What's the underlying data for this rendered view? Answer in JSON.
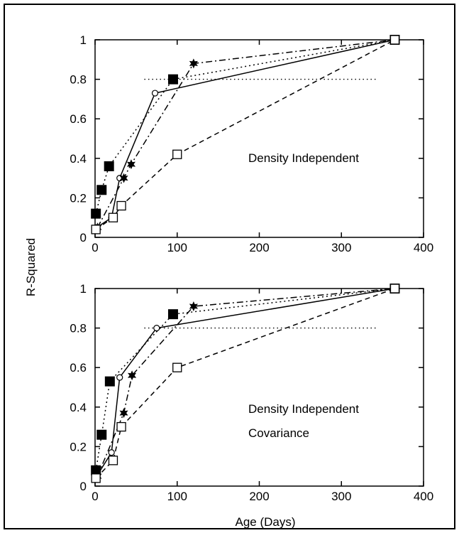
{
  "figure": {
    "ylabel": "R-Squared",
    "xlabel": "Age (Days)"
  },
  "chart_data": [
    {
      "type": "line",
      "annotation": [
        "Density Independent"
      ],
      "xlim": [
        0,
        400
      ],
      "ylim": [
        0,
        1
      ],
      "xticks": [
        "0",
        "100",
        "200",
        "300",
        "400"
      ],
      "yticks": [
        "0",
        "0.2",
        "0.4",
        "0.6",
        "0.8",
        "1"
      ],
      "reference_y": 0.8,
      "series": [
        {
          "style": "solid",
          "marker": "open-circle",
          "points": [
            [
              2,
              0.05
            ],
            [
              20,
              0.1
            ],
            [
              30,
              0.3
            ],
            [
              73,
              0.73
            ],
            [
              365,
              1.0
            ]
          ]
        },
        {
          "style": "dotted",
          "marker": "filled-square",
          "points": [
            [
              1,
              0.12
            ],
            [
              8,
              0.24
            ],
            [
              17,
              0.36
            ],
            [
              95,
              0.8
            ],
            [
              365,
              1.0
            ]
          ]
        },
        {
          "style": "dash-dot",
          "marker": "filled-star",
          "points": [
            [
              3,
              0.05
            ],
            [
              35,
              0.3
            ],
            [
              44,
              0.37
            ],
            [
              120,
              0.88
            ],
            [
              365,
              1.0
            ]
          ]
        },
        {
          "style": "dashed",
          "marker": "open-square",
          "points": [
            [
              1,
              0.04
            ],
            [
              22,
              0.1
            ],
            [
              32,
              0.16
            ],
            [
              100,
              0.42
            ],
            [
              365,
              1.0
            ]
          ]
        }
      ]
    },
    {
      "type": "line",
      "annotation": [
        "Density Independent",
        "Covariance"
      ],
      "xlim": [
        0,
        400
      ],
      "ylim": [
        0,
        1
      ],
      "xticks": [
        "0",
        "100",
        "200",
        "300",
        "400"
      ],
      "yticks": [
        "0",
        "0.2",
        "0.4",
        "0.6",
        "0.8",
        "1"
      ],
      "reference_y": 0.8,
      "series": [
        {
          "style": "solid",
          "marker": "open-circle",
          "points": [
            [
              2,
              0.05
            ],
            [
              20,
              0.17
            ],
            [
              30,
              0.55
            ],
            [
              75,
              0.8
            ],
            [
              365,
              1.0
            ]
          ]
        },
        {
          "style": "dotted",
          "marker": "filled-square",
          "points": [
            [
              1,
              0.08
            ],
            [
              8,
              0.26
            ],
            [
              18,
              0.53
            ],
            [
              95,
              0.87
            ],
            [
              365,
              1.0
            ]
          ]
        },
        {
          "style": "dash-dot",
          "marker": "filled-star",
          "points": [
            [
              3,
              0.05
            ],
            [
              35,
              0.37
            ],
            [
              45,
              0.56
            ],
            [
              120,
              0.91
            ],
            [
              365,
              1.0
            ]
          ]
        },
        {
          "style": "dashed",
          "marker": "open-square",
          "points": [
            [
              1,
              0.04
            ],
            [
              22,
              0.13
            ],
            [
              32,
              0.3
            ],
            [
              100,
              0.6
            ],
            [
              365,
              1.0
            ]
          ]
        }
      ]
    }
  ]
}
